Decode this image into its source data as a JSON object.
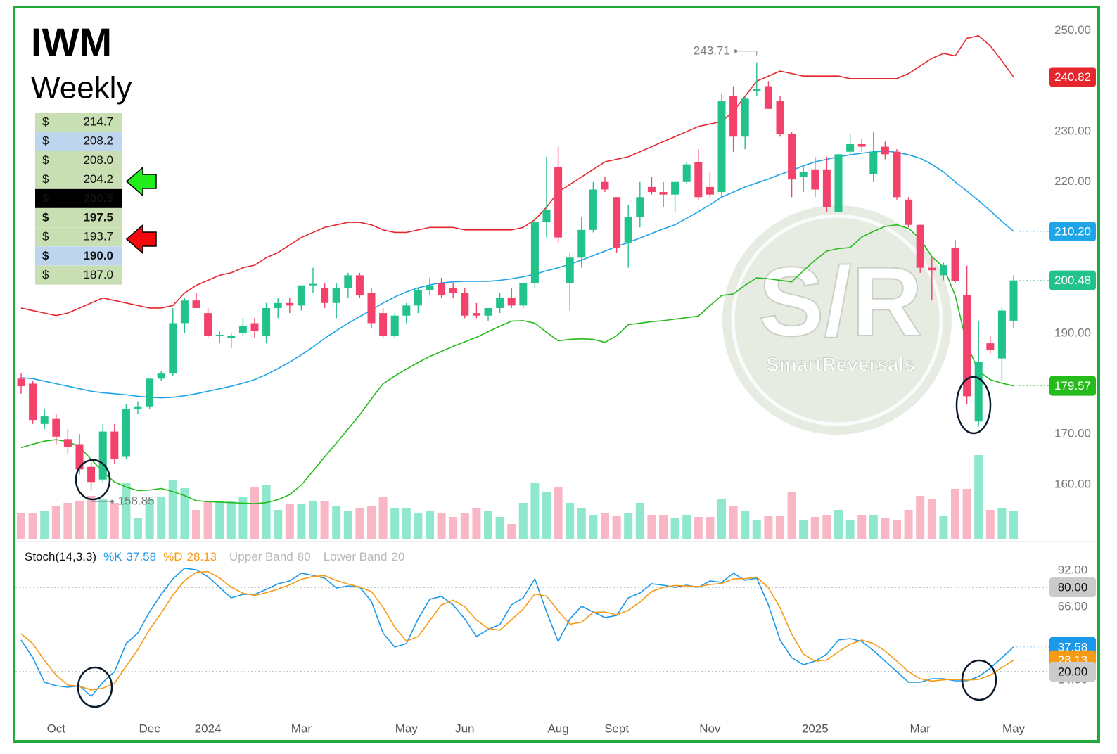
{
  "title": "IWM",
  "subtitle": "Weekly",
  "levels": [
    {
      "symbol": "$",
      "price": "214.7",
      "background": "#c7dfb2",
      "bold": false
    },
    {
      "symbol": "$",
      "price": "208.2",
      "background": "#bdd6ee",
      "bold": false
    },
    {
      "symbol": "$",
      "price": "208.0",
      "background": "#c7dfb2",
      "bold": false
    },
    {
      "symbol": "$",
      "price": "204.2",
      "background": "#c7dfb2",
      "bold": false
    },
    {
      "symbol": "$",
      "price": "200.5",
      "background": "#000000",
      "bold": true
    },
    {
      "symbol": "$",
      "price": "197.5",
      "background": "#c7dfb2",
      "bold": true
    },
    {
      "symbol": "$",
      "price": "193.7",
      "background": "#c7dfb2",
      "bold": false
    },
    {
      "symbol": "$",
      "price": "190.0",
      "background": "#bdd6ee",
      "bold": true
    },
    {
      "symbol": "$",
      "price": "187.0",
      "background": "#c7dfb2",
      "bold": false
    }
  ],
  "watermark": {
    "logo": "S/R",
    "name": "SmartReversals"
  },
  "chart_data": [
    {
      "type": "candlestick",
      "categories": [
        null,
        null,
        null,
        "Oct",
        null,
        null,
        null,
        null,
        null,
        null,
        null,
        "Dec",
        null,
        null,
        null,
        null,
        "2024",
        null,
        null,
        null,
        null,
        null,
        null,
        null,
        "Mar",
        null,
        null,
        null,
        null,
        null,
        null,
        null,
        null,
        "May",
        null,
        null,
        null,
        null,
        "Jun",
        null,
        null,
        null,
        null,
        null,
        null,
        null,
        "Aug",
        null,
        null,
        null,
        null,
        "Sept",
        null,
        null,
        null,
        null,
        null,
        null,
        null,
        "Nov",
        null,
        null,
        null,
        null,
        null,
        null,
        null,
        null,
        "2025",
        null,
        null,
        null,
        null,
        null,
        null,
        null,
        null,
        "Mar",
        null,
        null,
        null,
        null,
        null,
        null,
        null,
        "May"
      ],
      "open": [
        181,
        180,
        172,
        173,
        169,
        168,
        163.5,
        161,
        170.5,
        165.5,
        175,
        175.5,
        181,
        182,
        192,
        196.5,
        194,
        189.5,
        189,
        190,
        192,
        189.5,
        195,
        196,
        195.5,
        199.5,
        199,
        196,
        199,
        201.5,
        198,
        194,
        189.5,
        193.5,
        195.5,
        198.5,
        200,
        199,
        198,
        194,
        193.5,
        195,
        197,
        195.5,
        200,
        212,
        223,
        200,
        205,
        210.5,
        220,
        217,
        208,
        213,
        219,
        218,
        217.5,
        220,
        224,
        219,
        218,
        237,
        229,
        238,
        239,
        236,
        229.5,
        221,
        222.5,
        222.5,
        214,
        226,
        227.5,
        221.5,
        227,
        226,
        216.5,
        211.5,
        203,
        201.5,
        207,
        197.5,
        172.5,
        188,
        185,
        192.5
      ],
      "high": [
        182,
        180.5,
        175,
        174,
        171,
        170,
        164.5,
        172,
        172,
        176,
        176.5,
        181,
        182.5,
        195,
        197,
        198,
        195,
        190.5,
        190,
        193,
        193,
        196,
        197,
        197,
        199,
        203,
        200,
        200,
        202,
        202,
        199,
        195,
        194,
        196,
        199,
        201,
        201,
        200,
        199,
        196,
        195,
        198,
        199,
        200,
        213,
        225,
        227,
        206,
        213,
        220,
        221,
        217,
        215.5,
        220,
        221,
        220,
        220,
        224,
        226.5,
        222,
        237.5,
        239,
        237,
        243.71,
        240,
        237,
        230,
        223,
        225,
        225,
        225.5,
        229.5,
        228.5,
        230,
        228,
        226.5,
        217,
        211.5,
        205,
        204,
        208.5,
        203.4,
        192.5,
        189.5,
        195,
        201.5
      ],
      "low": [
        178,
        172,
        171,
        168,
        166,
        162,
        158.85,
        160.5,
        164,
        165,
        174,
        175,
        180.5,
        181.5,
        190,
        195,
        189,
        188,
        187,
        189.5,
        189,
        188,
        193,
        194,
        194.5,
        198,
        195,
        193,
        197,
        197,
        191,
        189,
        189,
        192,
        194,
        197.5,
        197,
        197,
        193,
        193,
        192.5,
        194,
        195,
        195,
        199,
        209,
        208,
        194.5,
        203,
        210,
        218,
        206,
        203,
        211,
        217.5,
        215,
        214,
        219.5,
        216.5,
        217,
        217,
        226,
        226.5,
        237,
        234.5,
        229,
        217,
        218,
        217,
        214,
        214,
        225.5,
        226,
        220,
        224.5,
        216.5,
        211,
        202,
        196.5,
        200.5,
        200,
        176,
        171.5,
        186,
        180.5,
        191
      ],
      "close": [
        179.5,
        172.8,
        173.5,
        169.5,
        167.5,
        163,
        160.5,
        170.5,
        165,
        175,
        175.5,
        181,
        182,
        192,
        196.5,
        195,
        189.5,
        189.7,
        189.5,
        191.5,
        190.5,
        195,
        196,
        195.5,
        199.5,
        199.8,
        196,
        199,
        201.5,
        197.5,
        192,
        189.5,
        193.5,
        195.5,
        198.5,
        199.5,
        197.5,
        198,
        193.5,
        193.5,
        195,
        197,
        195.5,
        200,
        212,
        214.5,
        209,
        205,
        210.5,
        218.5,
        218.5,
        207,
        213,
        217,
        218,
        217.5,
        220,
        223.5,
        217,
        217.5,
        236,
        229,
        236.5,
        238.5,
        234.5,
        229.5,
        220.5,
        222,
        218.5,
        215,
        225.5,
        227.5,
        227,
        226,
        225.5,
        217,
        211.5,
        203,
        202.5,
        203.5,
        200.3,
        177.5,
        184.3,
        186.7,
        194.5,
        200.48
      ],
      "last_label": "200.48",
      "up_color": "#22c28b",
      "down_color": "#f2416a",
      "volume": [
        38,
        38,
        40,
        48,
        52,
        55,
        62,
        58,
        52,
        80,
        30,
        58,
        60,
        85,
        73,
        42,
        55,
        55,
        55,
        60,
        75,
        78,
        42,
        50,
        50,
        55,
        55,
        48,
        40,
        45,
        48,
        60,
        45,
        45,
        38,
        40,
        38,
        32,
        38,
        45,
        40,
        32,
        22,
        52,
        80,
        68,
        75,
        52,
        45,
        35,
        38,
        33,
        38,
        52,
        35,
        35,
        30,
        35,
        32,
        32,
        58,
        48,
        40,
        28,
        33,
        33,
        68,
        28,
        32,
        35,
        42,
        28,
        35,
        35,
        30,
        28,
        42,
        62,
        57,
        33,
        72,
        72,
        120,
        42,
        45,
        40
      ],
      "volume_colors": {
        "up": "#8fe8cd",
        "down": "#f9b6c5"
      },
      "series": [
        {
          "color": "#e6262d",
          "last_label": "240.82",
          "values": [
            195,
            194.5,
            194,
            193.5,
            194,
            195,
            196,
            197,
            196.5,
            196,
            195.5,
            195,
            195,
            195.5,
            198,
            199.5,
            200.5,
            201.5,
            202,
            203,
            203.5,
            205,
            206,
            207.5,
            209,
            210,
            211,
            211.5,
            212,
            212,
            211.5,
            210.5,
            210,
            210,
            210.5,
            211,
            211,
            211,
            210.5,
            210.5,
            210.5,
            210.5,
            210.5,
            211,
            212.5,
            215,
            218,
            219.5,
            221,
            222.5,
            224,
            224.5,
            225,
            226,
            227,
            228,
            229,
            230,
            231,
            231.5,
            232,
            234,
            237,
            240,
            241,
            242,
            241.5,
            241,
            241,
            241,
            241,
            240.5,
            240.5,
            240.5,
            240.5,
            240.5,
            241.5,
            243,
            244.5,
            245.5,
            245,
            248.5,
            249,
            247,
            244,
            240.82
          ]
        },
        {
          "color": "#1ea5e8",
          "last_label": "210.20",
          "values": [
            181.2,
            181,
            180.5,
            180,
            179.5,
            179,
            178.5,
            178.2,
            178,
            177.8,
            177.5,
            177.3,
            177.2,
            177.3,
            177.6,
            178,
            178.5,
            179,
            179.5,
            180.1,
            180.8,
            181.8,
            183,
            184.3,
            185.7,
            187.3,
            189,
            190.5,
            192,
            193.3,
            194.6,
            196,
            197.2,
            198.2,
            199,
            199.6,
            200,
            200.2,
            200.3,
            200.3,
            200.3,
            200.5,
            200.8,
            201.2,
            201.7,
            202.4,
            203,
            203.7,
            204.5,
            205.4,
            206.3,
            207.2,
            208,
            208.9,
            209.8,
            210.7,
            211.5,
            212.8,
            214.1,
            215.5,
            217,
            218,
            219,
            219.8,
            220.6,
            221.5,
            222.3,
            223.2,
            224,
            224.5,
            225,
            225.4,
            225.7,
            226,
            226.1,
            225.9,
            225.4,
            224.7,
            223.5,
            222,
            220,
            218.2,
            216.3,
            214.3,
            212.2,
            210.2
          ]
        },
        {
          "color": "#24bb1b",
          "last_label": "179.57",
          "values": [
            167.3,
            168,
            168.6,
            168.9,
            168.5,
            167.5,
            165,
            162.5,
            160.5,
            159.5,
            158.8,
            158.9,
            159.2,
            158.6,
            157.8,
            156.8,
            156.6,
            156.5,
            156.4,
            156.3,
            156.2,
            156.4,
            157,
            158,
            159.9,
            162.7,
            165.5,
            168.2,
            171,
            173.8,
            177,
            180,
            181.5,
            182.9,
            184.2,
            185.4,
            186.4,
            187.4,
            188.3,
            189.2,
            190.3,
            191.4,
            192.4,
            192.5,
            192,
            190.2,
            188.5,
            188.8,
            188.9,
            188.8,
            188.2,
            189.5,
            191.7,
            192,
            192.3,
            192.5,
            192.8,
            193.1,
            193.4,
            195.5,
            197.5,
            197.8,
            199.5,
            201,
            200.8,
            200.5,
            200.2,
            202.4,
            204.5,
            206.3,
            206.8,
            207,
            209.1,
            210.2,
            211.2,
            211.5,
            210.8,
            208.7,
            205.2,
            203.1,
            197.5,
            187.8,
            182.5,
            180.8,
            180.1,
            179.57
          ]
        }
      ],
      "annotations": [
        {
          "label": "243.71",
          "value": 243.71
        },
        {
          "label": "158.85",
          "value": 158.85
        }
      ],
      "ylim": [
        149.1,
        254.7
      ],
      "yticks": [
        {
          "value": 250,
          "label": "250.00"
        },
        {
          "value": 230,
          "label": "230.00"
        },
        {
          "value": 220,
          "label": "220.00"
        },
        {
          "value": 190,
          "label": "190.00"
        },
        {
          "value": 170,
          "label": "170.00"
        },
        {
          "value": 160,
          "label": "160.00"
        }
      ],
      "grid": false
    },
    {
      "type": "line",
      "title": "Stoch(14,3,3)",
      "series": [
        {
          "name": "%K",
          "color": "#1b98ea",
          "last_label": "37.58",
          "values": [
            42.5,
            30,
            12.5,
            10,
            9,
            10,
            2.5,
            12.5,
            20,
            40,
            47.5,
            62.5,
            75,
            86,
            93.5,
            92.5,
            87.5,
            80,
            72.5,
            75,
            75,
            78.5,
            82.5,
            84.5,
            90,
            88.5,
            86.5,
            79.5,
            81,
            80,
            70,
            47.5,
            37.5,
            40,
            57.5,
            71.5,
            73.5,
            67.5,
            57.5,
            45,
            50,
            53.5,
            67.5,
            72.5,
            86,
            62.5,
            41.5,
            57.5,
            66.5,
            62.5,
            58.5,
            60,
            72.5,
            76,
            82.5,
            81.5,
            80,
            81.5,
            80,
            84.5,
            83.5,
            90,
            85,
            86.5,
            67.5,
            42.5,
            30,
            25,
            27.5,
            32.5,
            42.5,
            43.5,
            41.5,
            35,
            27.5,
            20,
            12.5,
            12.5,
            15,
            15,
            13.5,
            13.5,
            16.5,
            22.5,
            30,
            37.58
          ]
        },
        {
          "name": "%D",
          "color": "#f59a15",
          "last_label": "28.13",
          "values": [
            47,
            40,
            28,
            17.5,
            10.5,
            9.7,
            7,
            8.3,
            11.7,
            24,
            35.8,
            50,
            61.7,
            74.5,
            84.8,
            90.7,
            91.2,
            86.7,
            80,
            75.8,
            74.2,
            76.2,
            78.7,
            81.8,
            85.7,
            87.7,
            88.3,
            84.8,
            82.3,
            80.2,
            77,
            65.8,
            51.7,
            41.7,
            45,
            56.3,
            67.5,
            70.8,
            66.2,
            56.7,
            50.8,
            49.5,
            57,
            64.5,
            75.3,
            73.7,
            63.3,
            53.8,
            55.2,
            62.2,
            62.5,
            60.3,
            63.7,
            69.5,
            77,
            80,
            81.3,
            81,
            80.5,
            82,
            82.7,
            86,
            86.2,
            87.2,
            79.7,
            65.5,
            46.7,
            32.5,
            27.5,
            28.3,
            34.2,
            39.5,
            42.5,
            40,
            34.7,
            27.5,
            20,
            15,
            13.3,
            14.2,
            14.5,
            14,
            14.5,
            17.5,
            23,
            28.13
          ]
        }
      ],
      "bands": [
        {
          "name": "Upper Band",
          "value": 80,
          "label": "80.00"
        },
        {
          "name": "Lower Band",
          "value": 20,
          "label": "20.00"
        }
      ],
      "ylim": [
        -12.5,
        110
      ],
      "yticks": [
        {
          "value": 92,
          "label": "92.00"
        },
        {
          "value": 66,
          "label": "66.00"
        },
        {
          "value": 14,
          "label": "14.00"
        }
      ],
      "grid": false
    }
  ]
}
